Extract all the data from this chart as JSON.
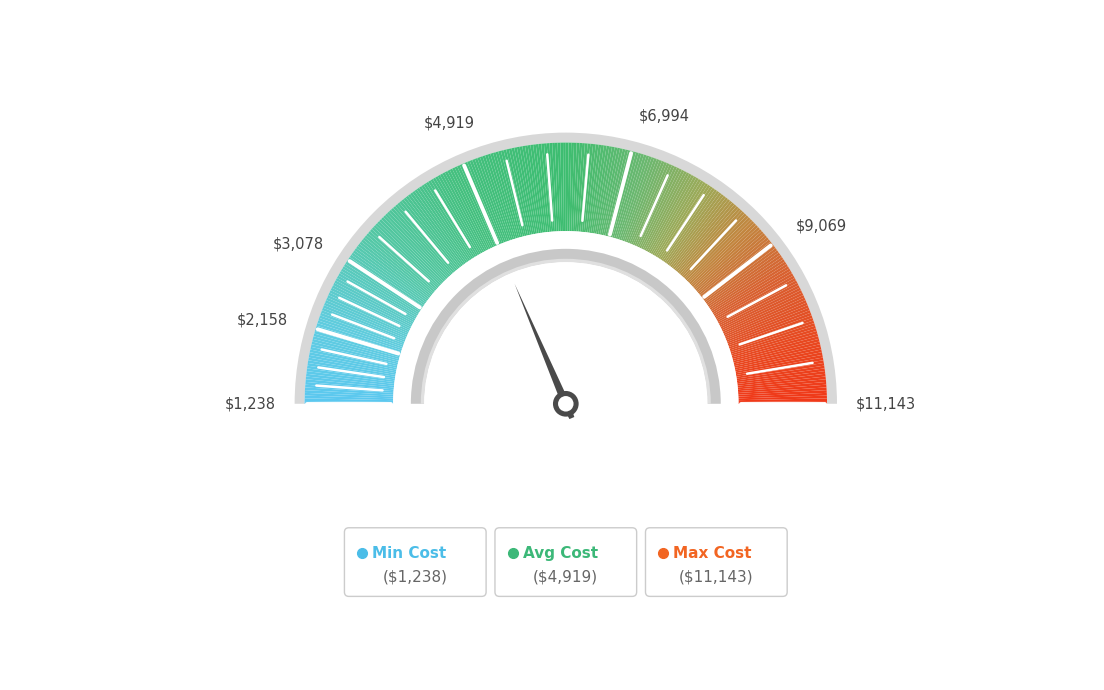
{
  "min_val": 1238,
  "max_val": 11143,
  "avg_val": 4919,
  "labels": [
    "$1,238",
    "$2,158",
    "$3,078",
    "$4,919",
    "$6,994",
    "$9,069",
    "$11,143"
  ],
  "label_values": [
    1238,
    2158,
    3078,
    4919,
    6994,
    9069,
    11143
  ],
  "min_cost_label": "Min Cost",
  "avg_cost_label": "Avg Cost",
  "max_cost_label": "Max Cost",
  "min_cost_value": "($1,238)",
  "avg_cost_value": "($4,919)",
  "max_cost_value": "($11,143)",
  "min_color": "#4BBDE8",
  "avg_color": "#3CB878",
  "max_color": "#F26522",
  "bg_color": "#FFFFFF",
  "needle_value": 4919,
  "colors_gradient": [
    [
      0.0,
      "#5BC8F0"
    ],
    [
      0.1,
      "#60CCE0"
    ],
    [
      0.22,
      "#55C8A8"
    ],
    [
      0.35,
      "#45C080"
    ],
    [
      0.5,
      "#3DBD70"
    ],
    [
      0.6,
      "#6AB870"
    ],
    [
      0.68,
      "#9CAA58"
    ],
    [
      0.75,
      "#C08840"
    ],
    [
      0.83,
      "#D86030"
    ],
    [
      0.92,
      "#E84820"
    ],
    [
      1.0,
      "#F03818"
    ]
  ]
}
